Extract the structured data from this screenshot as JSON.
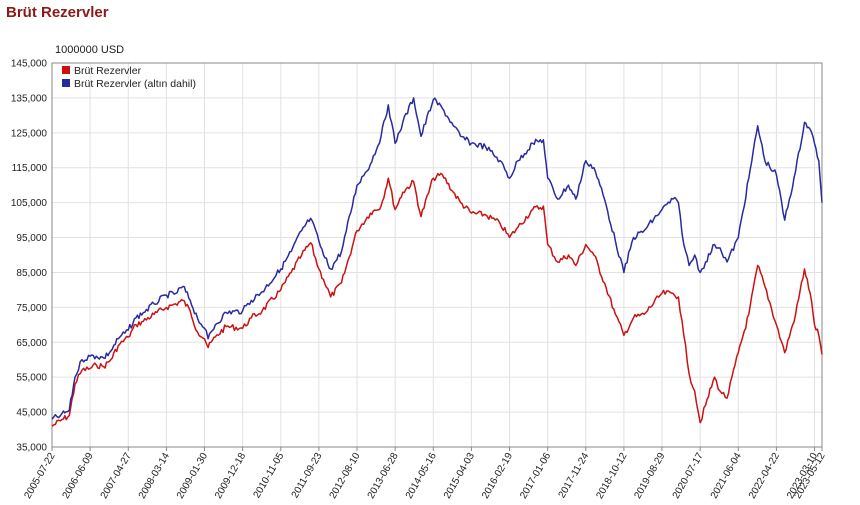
{
  "page_title": "Brüt Rezervler",
  "colors": {
    "title": "#8b1a1a",
    "red": "#cc1111",
    "blue": "#2a2aa0",
    "grid": "#e2e2e2",
    "axis": "#888888"
  },
  "chart_data": {
    "type": "line",
    "title": "Brüt Rezervler",
    "ylabel": "1000000 USD",
    "xlabel": "",
    "ylim": [
      35000,
      145000
    ],
    "yticks": [
      35000,
      45000,
      55000,
      65000,
      75000,
      85000,
      95000,
      105000,
      115000,
      125000,
      135000,
      145000
    ],
    "ytick_labels": [
      "35,000",
      "45,000",
      "55,000",
      "65,000",
      "75,000",
      "85,000",
      "95,000",
      "105,000",
      "115,000",
      "125,000",
      "135,000",
      "145,000"
    ],
    "xticks": [
      "2005-07-22",
      "2006-06-09",
      "2007-04-27",
      "2008-03-14",
      "2009-01-30",
      "2009-12-18",
      "2010-11-05",
      "2011-09-23",
      "2012-08-10",
      "2013-06-28",
      "2014-05-16",
      "2015-04-03",
      "2016-02-19",
      "2017-01-06",
      "2017-11-24",
      "2018-10-12",
      "2019-08-29",
      "2020-07-17",
      "2021-06-04",
      "2022-04-22",
      "2023-03-10",
      "2023-05-12"
    ],
    "xlim": [
      "2005-07-22",
      "2023-05-12"
    ],
    "grid": true,
    "legend_position": "top-left",
    "series": [
      {
        "name": "Brüt Rezervler",
        "color": "#cc1111",
        "points": [
          [
            "2005-07-22",
            41000
          ],
          [
            "2005-10-01",
            42500
          ],
          [
            "2005-12-15",
            44000
          ],
          [
            "2006-02-01",
            53000
          ],
          [
            "2006-04-01",
            57000
          ],
          [
            "2006-06-09",
            57500
          ],
          [
            "2006-08-01",
            58500
          ],
          [
            "2006-10-01",
            58000
          ],
          [
            "2006-12-01",
            60000
          ],
          [
            "2007-02-01",
            64000
          ],
          [
            "2007-04-27",
            66500
          ],
          [
            "2007-07-01",
            70000
          ],
          [
            "2007-09-01",
            71000
          ],
          [
            "2007-12-01",
            73000
          ],
          [
            "2008-03-14",
            75000
          ],
          [
            "2008-06-01",
            76000
          ],
          [
            "2008-08-01",
            77000
          ],
          [
            "2008-10-01",
            74000
          ],
          [
            "2008-12-01",
            68000
          ],
          [
            "2009-01-30",
            66000
          ],
          [
            "2009-03-01",
            63500
          ],
          [
            "2009-05-01",
            66500
          ],
          [
            "2009-08-01",
            69500
          ],
          [
            "2009-12-18",
            69000
          ],
          [
            "2010-03-01",
            72000
          ],
          [
            "2010-06-01",
            74000
          ],
          [
            "2010-11-05",
            80000
          ],
          [
            "2011-02-01",
            85000
          ],
          [
            "2011-05-01",
            90000
          ],
          [
            "2011-07-15",
            93500
          ],
          [
            "2011-09-23",
            86000
          ],
          [
            "2011-11-01",
            83000
          ],
          [
            "2012-01-01",
            78000
          ],
          [
            "2012-04-01",
            82000
          ],
          [
            "2012-08-10",
            97000
          ],
          [
            "2012-12-01",
            102000
          ],
          [
            "2013-03-01",
            104000
          ],
          [
            "2013-05-01",
            112000
          ],
          [
            "2013-06-28",
            103000
          ],
          [
            "2013-09-01",
            108000
          ],
          [
            "2013-12-01",
            111000
          ],
          [
            "2014-02-01",
            101000
          ],
          [
            "2014-05-16",
            112000
          ],
          [
            "2014-08-01",
            113000
          ],
          [
            "2014-11-01",
            108000
          ],
          [
            "2015-01-01",
            105000
          ],
          [
            "2015-04-03",
            102000
          ],
          [
            "2015-08-01",
            101500
          ],
          [
            "2015-12-01",
            99000
          ],
          [
            "2016-02-19",
            95000
          ],
          [
            "2016-05-01",
            98000
          ],
          [
            "2016-09-01",
            103000
          ],
          [
            "2016-12-01",
            104000
          ],
          [
            "2017-01-06",
            93000
          ],
          [
            "2017-04-01",
            88000
          ],
          [
            "2017-07-01",
            90000
          ],
          [
            "2017-09-01",
            87000
          ],
          [
            "2017-11-24",
            93000
          ],
          [
            "2018-02-01",
            90000
          ],
          [
            "2018-05-01",
            82000
          ],
          [
            "2018-08-01",
            73000
          ],
          [
            "2018-10-12",
            67000
          ],
          [
            "2019-01-01",
            72000
          ],
          [
            "2019-04-01",
            73000
          ],
          [
            "2019-08-29",
            79000
          ],
          [
            "2019-12-01",
            79000
          ],
          [
            "2020-01-15",
            78000
          ],
          [
            "2020-03-01",
            67000
          ],
          [
            "2020-04-15",
            56000
          ],
          [
            "2020-06-01",
            51000
          ],
          [
            "2020-07-17",
            42000
          ],
          [
            "2020-09-01",
            47000
          ],
          [
            "2020-11-15",
            55000
          ],
          [
            "2021-01-01",
            51000
          ],
          [
            "2021-03-01",
            49000
          ],
          [
            "2021-06-04",
            62000
          ],
          [
            "2021-09-01",
            73000
          ],
          [
            "2021-11-15",
            87000
          ],
          [
            "2022-01-15",
            81000
          ],
          [
            "2022-04-22",
            70000
          ],
          [
            "2022-07-01",
            62000
          ],
          [
            "2022-10-01",
            73000
          ],
          [
            "2022-12-15",
            86000
          ],
          [
            "2023-02-01",
            79000
          ],
          [
            "2023-03-10",
            70000
          ],
          [
            "2023-04-15",
            67000
          ],
          [
            "2023-05-12",
            61500
          ]
        ]
      },
      {
        "name": "Brüt Rezervler (altın dahil)",
        "color": "#2a2aa0",
        "points": [
          [
            "2005-07-22",
            43000
          ],
          [
            "2005-10-01",
            44000
          ],
          [
            "2005-12-15",
            45500
          ],
          [
            "2006-02-01",
            55000
          ],
          [
            "2006-04-01",
            60000
          ],
          [
            "2006-06-09",
            61000
          ],
          [
            "2006-08-01",
            61000
          ],
          [
            "2006-10-01",
            60500
          ],
          [
            "2006-12-01",
            62500
          ],
          [
            "2007-02-01",
            66000
          ],
          [
            "2007-04-27",
            68500
          ],
          [
            "2007-07-01",
            72000
          ],
          [
            "2007-09-01",
            73500
          ],
          [
            "2007-12-01",
            76000
          ],
          [
            "2008-03-14",
            78500
          ],
          [
            "2008-06-01",
            79000
          ],
          [
            "2008-08-01",
            81000
          ],
          [
            "2008-10-01",
            77000
          ],
          [
            "2008-12-01",
            72000
          ],
          [
            "2009-01-30",
            69000
          ],
          [
            "2009-03-01",
            66000
          ],
          [
            "2009-05-01",
            70000
          ],
          [
            "2009-08-01",
            73500
          ],
          [
            "2009-12-18",
            74000
          ],
          [
            "2010-03-01",
            77000
          ],
          [
            "2010-06-01",
            79500
          ],
          [
            "2010-11-05",
            86000
          ],
          [
            "2011-02-01",
            91000
          ],
          [
            "2011-05-01",
            97000
          ],
          [
            "2011-07-15",
            100500
          ],
          [
            "2011-09-23",
            94000
          ],
          [
            "2011-11-01",
            90000
          ],
          [
            "2012-01-01",
            86000
          ],
          [
            "2012-04-01",
            91000
          ],
          [
            "2012-08-10",
            110000
          ],
          [
            "2012-12-01",
            116000
          ],
          [
            "2013-03-01",
            124000
          ],
          [
            "2013-05-01",
            133000
          ],
          [
            "2013-06-28",
            122000
          ],
          [
            "2013-09-01",
            128000
          ],
          [
            "2013-12-01",
            135000
          ],
          [
            "2014-02-01",
            124000
          ],
          [
            "2014-05-16",
            134500
          ],
          [
            "2014-08-01",
            132000
          ],
          [
            "2014-11-01",
            127000
          ],
          [
            "2015-01-01",
            124000
          ],
          [
            "2015-04-03",
            122000
          ],
          [
            "2015-08-01",
            121000
          ],
          [
            "2015-12-01",
            117000
          ],
          [
            "2016-02-19",
            112000
          ],
          [
            "2016-05-01",
            117000
          ],
          [
            "2016-09-01",
            122000
          ],
          [
            "2016-12-01",
            123000
          ],
          [
            "2017-01-06",
            112000
          ],
          [
            "2017-04-01",
            106000
          ],
          [
            "2017-07-01",
            110000
          ],
          [
            "2017-09-01",
            106000
          ],
          [
            "2017-11-24",
            117000
          ],
          [
            "2018-02-01",
            115000
          ],
          [
            "2018-05-01",
            106000
          ],
          [
            "2018-08-01",
            94000
          ],
          [
            "2018-10-12",
            85000
          ],
          [
            "2019-01-01",
            95000
          ],
          [
            "2019-04-01",
            97000
          ],
          [
            "2019-08-29",
            103000
          ],
          [
            "2019-12-01",
            106000
          ],
          [
            "2020-01-15",
            105000
          ],
          [
            "2020-03-01",
            93000
          ],
          [
            "2020-04-15",
            87000
          ],
          [
            "2020-06-01",
            90000
          ],
          [
            "2020-07-17",
            85000
          ],
          [
            "2020-09-01",
            88000
          ],
          [
            "2020-11-15",
            93000
          ],
          [
            "2021-01-01",
            92000
          ],
          [
            "2021-03-01",
            88000
          ],
          [
            "2021-06-04",
            95000
          ],
          [
            "2021-09-01",
            112000
          ],
          [
            "2021-11-15",
            127000
          ],
          [
            "2022-01-15",
            117000
          ],
          [
            "2022-04-22",
            113000
          ],
          [
            "2022-07-01",
            100000
          ],
          [
            "2022-10-01",
            114000
          ],
          [
            "2022-12-15",
            128000
          ],
          [
            "2023-02-01",
            126000
          ],
          [
            "2023-03-10",
            122000
          ],
          [
            "2023-04-15",
            117000
          ],
          [
            "2023-05-12",
            105000
          ]
        ]
      }
    ]
  }
}
